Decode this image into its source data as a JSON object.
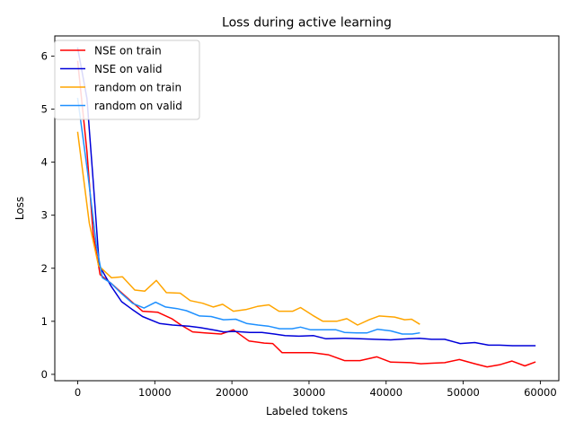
{
  "chart_data": {
    "type": "line",
    "title": "Loss during active learning",
    "xlabel": "Labeled tokens",
    "ylabel": "Loss",
    "xlim": [
      -2970,
      62400
    ],
    "ylim": [
      -0.12,
      6.38
    ],
    "xticks": [
      0,
      10000,
      20000,
      30000,
      40000,
      50000,
      60000
    ],
    "xtick_labels": [
      "0",
      "10000",
      "20000",
      "30000",
      "40000",
      "50000",
      "60000"
    ],
    "yticks": [
      0,
      1,
      2,
      3,
      4,
      5,
      6
    ],
    "ytick_labels": [
      "0",
      "1",
      "2",
      "3",
      "4",
      "5",
      "6"
    ],
    "grid": false,
    "legend_position": "top-left",
    "series": [
      {
        "name": "NSE on train",
        "color": "#ff0000",
        "points": [
          [
            0,
            5.9
          ],
          [
            1200,
            4.2
          ],
          [
            2000,
            2.65
          ],
          [
            2900,
            1.88
          ],
          [
            4300,
            1.72
          ],
          [
            5600,
            1.55
          ],
          [
            7000,
            1.37
          ],
          [
            8400,
            1.19
          ],
          [
            10400,
            1.17
          ],
          [
            12200,
            1.05
          ],
          [
            13400,
            0.93
          ],
          [
            14900,
            0.8
          ],
          [
            16500,
            0.78
          ],
          [
            18600,
            0.76
          ],
          [
            20200,
            0.84
          ],
          [
            22200,
            0.63
          ],
          [
            24200,
            0.59
          ],
          [
            25300,
            0.58
          ],
          [
            26500,
            0.41
          ],
          [
            28000,
            0.41
          ],
          [
            30400,
            0.41
          ],
          [
            32500,
            0.37
          ],
          [
            34600,
            0.26
          ],
          [
            36600,
            0.26
          ],
          [
            38800,
            0.33
          ],
          [
            40600,
            0.23
          ],
          [
            43200,
            0.22
          ],
          [
            44500,
            0.2
          ],
          [
            45900,
            0.21
          ],
          [
            47600,
            0.22
          ],
          [
            49500,
            0.28
          ],
          [
            51500,
            0.2
          ],
          [
            53100,
            0.14
          ],
          [
            54700,
            0.18
          ],
          [
            56300,
            0.25
          ],
          [
            58000,
            0.16
          ],
          [
            59300,
            0.23
          ]
        ]
      },
      {
        "name": "NSE on valid",
        "color": "#0000d9",
        "points": [
          [
            0,
            6.15
          ],
          [
            1200,
            5.2
          ],
          [
            2000,
            3.65
          ],
          [
            2800,
            2.05
          ],
          [
            4300,
            1.67
          ],
          [
            5700,
            1.37
          ],
          [
            7000,
            1.23
          ],
          [
            8400,
            1.09
          ],
          [
            10600,
            0.96
          ],
          [
            12300,
            0.93
          ],
          [
            14400,
            0.91
          ],
          [
            15900,
            0.88
          ],
          [
            17900,
            0.83
          ],
          [
            18900,
            0.8
          ],
          [
            20400,
            0.81
          ],
          [
            22300,
            0.79
          ],
          [
            23900,
            0.79
          ],
          [
            25500,
            0.76
          ],
          [
            26900,
            0.73
          ],
          [
            28700,
            0.72
          ],
          [
            30600,
            0.73
          ],
          [
            32200,
            0.67
          ],
          [
            34800,
            0.68
          ],
          [
            36600,
            0.67
          ],
          [
            38500,
            0.66
          ],
          [
            40600,
            0.65
          ],
          [
            42900,
            0.67
          ],
          [
            44300,
            0.68
          ],
          [
            45900,
            0.66
          ],
          [
            47600,
            0.66
          ],
          [
            49600,
            0.58
          ],
          [
            51500,
            0.6
          ],
          [
            53300,
            0.55
          ],
          [
            54700,
            0.55
          ],
          [
            56400,
            0.54
          ],
          [
            59300,
            0.54
          ]
        ]
      },
      {
        "name": "random on train",
        "color": "#ffa500",
        "points": [
          [
            0,
            4.56
          ],
          [
            1500,
            2.85
          ],
          [
            2700,
            2.05
          ],
          [
            4400,
            1.82
          ],
          [
            5800,
            1.84
          ],
          [
            7400,
            1.59
          ],
          [
            8700,
            1.57
          ],
          [
            10200,
            1.77
          ],
          [
            11500,
            1.54
          ],
          [
            13300,
            1.53
          ],
          [
            14600,
            1.39
          ],
          [
            16200,
            1.34
          ],
          [
            17600,
            1.27
          ],
          [
            18800,
            1.32
          ],
          [
            20200,
            1.19
          ],
          [
            21800,
            1.22
          ],
          [
            23300,
            1.28
          ],
          [
            24800,
            1.31
          ],
          [
            26100,
            1.19
          ],
          [
            27900,
            1.19
          ],
          [
            28900,
            1.26
          ],
          [
            30500,
            1.11
          ],
          [
            31800,
            1.0
          ],
          [
            33600,
            1.0
          ],
          [
            34900,
            1.05
          ],
          [
            36300,
            0.93
          ],
          [
            37800,
            1.03
          ],
          [
            39100,
            1.1
          ],
          [
            41100,
            1.08
          ],
          [
            42400,
            1.03
          ],
          [
            43300,
            1.04
          ],
          [
            44300,
            0.95
          ]
        ]
      },
      {
        "name": "random on valid",
        "color": "#1e90ff",
        "points": [
          [
            0,
            5.2
          ],
          [
            1300,
            3.8
          ],
          [
            2400,
            2.45
          ],
          [
            3200,
            1.82
          ],
          [
            4300,
            1.72
          ],
          [
            5700,
            1.52
          ],
          [
            7100,
            1.34
          ],
          [
            8600,
            1.25
          ],
          [
            10100,
            1.36
          ],
          [
            11400,
            1.27
          ],
          [
            12900,
            1.24
          ],
          [
            14100,
            1.2
          ],
          [
            15800,
            1.1
          ],
          [
            17300,
            1.09
          ],
          [
            18900,
            1.03
          ],
          [
            20500,
            1.04
          ],
          [
            21900,
            0.96
          ],
          [
            23400,
            0.93
          ],
          [
            24700,
            0.91
          ],
          [
            26200,
            0.86
          ],
          [
            27800,
            0.86
          ],
          [
            28900,
            0.89
          ],
          [
            30200,
            0.84
          ],
          [
            31700,
            0.84
          ],
          [
            33500,
            0.84
          ],
          [
            34600,
            0.79
          ],
          [
            36200,
            0.78
          ],
          [
            37500,
            0.78
          ],
          [
            38900,
            0.85
          ],
          [
            40600,
            0.82
          ],
          [
            42100,
            0.76
          ],
          [
            43400,
            0.76
          ],
          [
            44300,
            0.78
          ]
        ]
      }
    ]
  }
}
